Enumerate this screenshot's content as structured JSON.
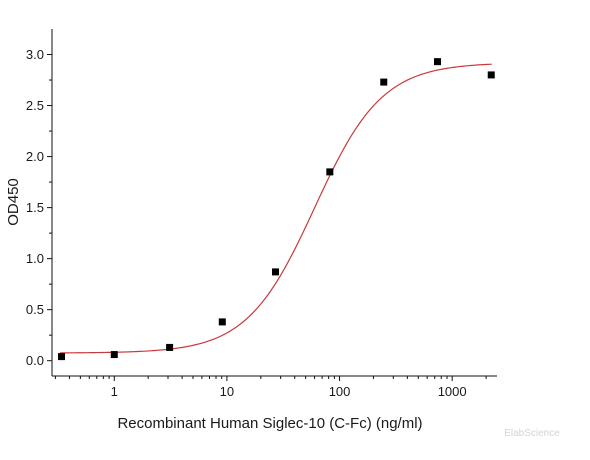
{
  "chart_data": {
    "type": "scatter",
    "title": "",
    "xlabel": "Recombinant Human Siglec-10 (C-Fc) (ng/ml)",
    "ylabel": "OD450",
    "xscale": "log",
    "xlim": [
      0.28,
      2500
    ],
    "ylim": [
      -0.15,
      3.25
    ],
    "x_ticks": [
      1,
      10,
      100,
      1000
    ],
    "x_tick_labels": [
      "1",
      "10",
      "100",
      "1000"
    ],
    "y_ticks": [
      0.0,
      0.5,
      1.0,
      1.5,
      2.0,
      2.5,
      3.0
    ],
    "y_tick_labels": [
      "0.0",
      "0.5",
      "1.0",
      "1.5",
      "2.0",
      "2.5",
      "3.0"
    ],
    "grid": false,
    "legend": "none",
    "series": [
      {
        "type": "scatter",
        "marker": "square",
        "color": "#000000",
        "x": [
          0.34,
          1.0,
          3.1,
          9.1,
          27,
          82,
          247,
          741,
          2222
        ],
        "y": [
          0.04,
          0.06,
          0.13,
          0.38,
          0.87,
          1.85,
          2.73,
          2.93,
          2.8
        ]
      },
      {
        "type": "line",
        "style": "4PL fit",
        "color": "#c8393f",
        "model": {
          "bottom": 0.075,
          "top": 2.92,
          "ec50": 60,
          "hill": 1.45
        }
      }
    ],
    "watermark": "ElabScience"
  }
}
